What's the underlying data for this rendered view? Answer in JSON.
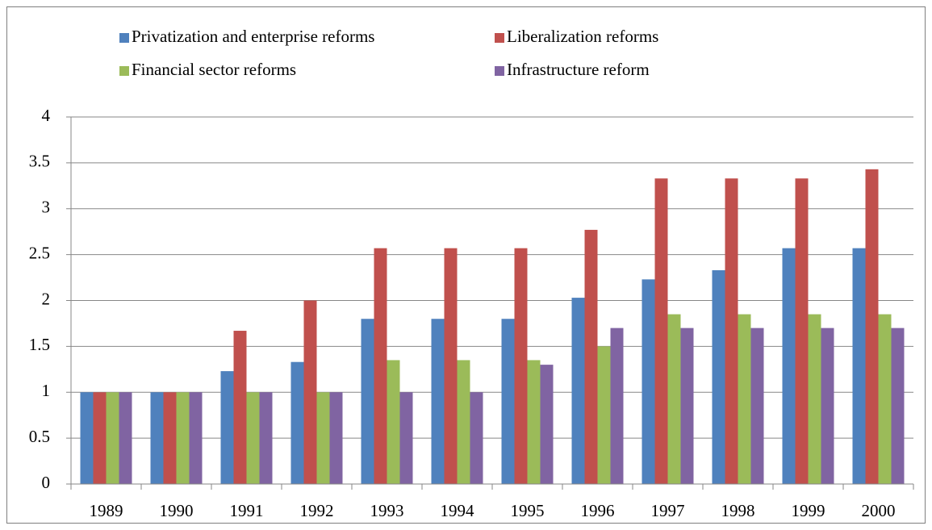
{
  "chart_data": {
    "type": "bar",
    "categories": [
      "1989",
      "1990",
      "1991",
      "1992",
      "1993",
      "1994",
      "1995",
      "1996",
      "1997",
      "1998",
      "1999",
      "2000"
    ],
    "series": [
      {
        "name": "Privatization and enterprise reforms",
        "color": "#4f81bd",
        "values": [
          1,
          1,
          1.23,
          1.33,
          1.8,
          1.8,
          1.8,
          2.03,
          2.23,
          2.33,
          2.57,
          2.57
        ]
      },
      {
        "name": "Liberalization reforms",
        "color": "#c0504d",
        "values": [
          1,
          1,
          1.67,
          2,
          2.57,
          2.57,
          2.57,
          2.77,
          3.33,
          3.33,
          3.33,
          3.43
        ]
      },
      {
        "name": "Financial sector reforms",
        "color": "#9bbb59",
        "values": [
          1,
          1,
          1,
          1,
          1.35,
          1.35,
          1.35,
          1.5,
          1.85,
          1.85,
          1.85,
          1.85
        ]
      },
      {
        "name": "Infrastructure reform",
        "color": "#8064a2",
        "values": [
          1,
          1,
          1,
          1,
          1,
          1,
          1.3,
          1.7,
          1.7,
          1.7,
          1.7,
          1.7
        ]
      }
    ],
    "ylim": [
      0,
      4
    ],
    "yticks": [
      0,
      0.5,
      1,
      1.5,
      2,
      2.5,
      3,
      3.5,
      4
    ],
    "grid": true,
    "legend": "top"
  }
}
